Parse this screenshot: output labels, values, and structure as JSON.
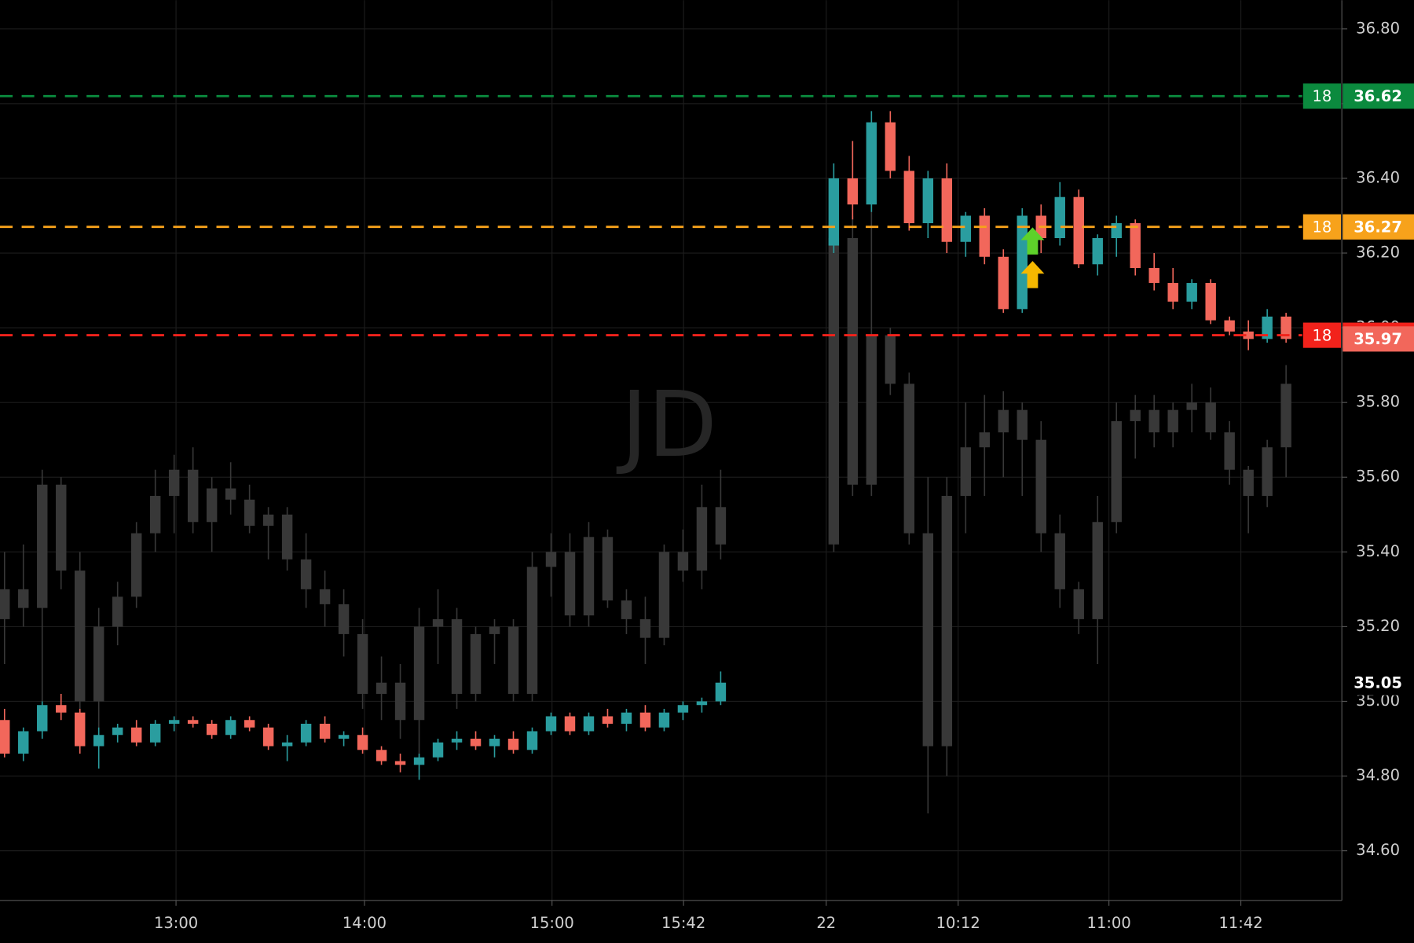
{
  "chart_data": {
    "type": "candlestick",
    "watermark": "JD",
    "x": [
      0,
      1,
      2,
      3,
      4,
      5,
      6,
      7,
      8,
      9,
      10,
      11,
      12,
      13,
      14,
      15,
      16,
      17,
      18,
      19,
      20,
      21,
      22,
      23,
      24,
      25,
      26,
      27,
      28,
      29,
      30,
      31,
      32,
      33,
      34,
      35,
      36,
      37,
      38,
      44,
      45,
      46,
      47,
      48,
      49,
      50,
      51,
      52,
      53,
      54,
      55,
      56,
      57,
      58,
      59,
      60,
      61,
      62,
      63,
      64,
      65,
      66,
      67,
      68
    ],
    "xlim": [
      -0.24,
      70.96
    ],
    "xticks": [
      {
        "value": 9.1,
        "label": "13:00"
      },
      {
        "value": 19.1,
        "label": "14:00"
      },
      {
        "value": 29.05,
        "label": "15:00"
      },
      {
        "value": 36.03,
        "label": "15:42"
      },
      {
        "value": 43.6,
        "label": "22"
      },
      {
        "value": 50.6,
        "label": "10:12"
      },
      {
        "value": 58.6,
        "label": "11:00"
      },
      {
        "value": 65.6,
        "label": "11:42"
      }
    ],
    "ylim": [
      34.467,
      36.877
    ],
    "yticks": [
      {
        "value": 34.6,
        "label": "34.60"
      },
      {
        "value": 34.8,
        "label": "34.80"
      },
      {
        "value": 35.0,
        "label": "35.00"
      },
      {
        "value": 35.2,
        "label": "35.20"
      },
      {
        "value": 35.4,
        "label": "35.40"
      },
      {
        "value": 35.6,
        "label": "35.60"
      },
      {
        "value": 35.8,
        "label": "35.80"
      },
      {
        "value": 36.0,
        "label": "36.00"
      },
      {
        "value": 36.2,
        "label": "36.20"
      },
      {
        "value": 36.4,
        "label": "36.40"
      },
      {
        "value": 36.6,
        "label": "36.60"
      },
      {
        "value": 36.8,
        "label": "36.80"
      }
    ],
    "grid": true,
    "series": [
      {
        "color": "#383838",
        "values": [
          [
            35.22,
            35.4,
            35.1,
            35.3
          ],
          [
            35.3,
            35.42,
            35.2,
            35.25
          ],
          [
            35.25,
            35.62,
            35.0,
            35.58
          ],
          [
            35.58,
            35.6,
            35.3,
            35.35
          ],
          [
            35.35,
            35.4,
            34.88,
            35.0
          ],
          [
            35.0,
            35.25,
            34.9,
            35.2
          ],
          [
            35.2,
            35.32,
            35.15,
            35.28
          ],
          [
            35.28,
            35.48,
            35.25,
            35.45
          ],
          [
            35.45,
            35.62,
            35.4,
            35.55
          ],
          [
            35.55,
            35.66,
            35.45,
            35.62
          ],
          [
            35.62,
            35.68,
            35.45,
            35.48
          ],
          [
            35.48,
            35.6,
            35.4,
            35.57
          ],
          [
            35.57,
            35.64,
            35.5,
            35.54
          ],
          [
            35.54,
            35.58,
            35.45,
            35.47
          ],
          [
            35.47,
            35.52,
            35.38,
            35.5
          ],
          [
            35.5,
            35.52,
            35.35,
            35.38
          ],
          [
            35.38,
            35.45,
            35.25,
            35.3
          ],
          [
            35.3,
            35.35,
            35.2,
            35.26
          ],
          [
            35.26,
            35.3,
            35.12,
            35.18
          ],
          [
            35.18,
            35.22,
            34.98,
            35.02
          ],
          [
            35.02,
            35.12,
            34.95,
            35.05
          ],
          [
            35.05,
            35.1,
            34.9,
            34.95
          ],
          [
            34.95,
            35.25,
            34.85,
            35.2
          ],
          [
            35.2,
            35.3,
            35.1,
            35.22
          ],
          [
            35.22,
            35.25,
            34.98,
            35.02
          ],
          [
            35.02,
            35.2,
            35.0,
            35.18
          ],
          [
            35.18,
            35.22,
            35.1,
            35.2
          ],
          [
            35.2,
            35.22,
            35.0,
            35.02
          ],
          [
            35.02,
            35.4,
            35.0,
            35.36
          ],
          [
            35.36,
            35.45,
            35.28,
            35.4
          ],
          [
            35.4,
            35.45,
            35.2,
            35.23
          ],
          [
            35.23,
            35.48,
            35.2,
            35.44
          ],
          [
            35.44,
            35.46,
            35.25,
            35.27
          ],
          [
            35.27,
            35.3,
            35.18,
            35.22
          ],
          [
            35.22,
            35.28,
            35.1,
            35.17
          ],
          [
            35.17,
            35.42,
            35.15,
            35.4
          ],
          [
            35.4,
            35.46,
            35.32,
            35.35
          ],
          [
            35.35,
            35.58,
            35.3,
            35.52
          ],
          [
            35.52,
            35.62,
            35.38,
            35.42
          ],
          [
            35.42,
            36.27,
            35.4,
            36.24
          ],
          [
            36.24,
            36.3,
            35.55,
            35.58
          ],
          [
            35.58,
            36.4,
            35.55,
            35.98
          ],
          [
            35.98,
            36.0,
            35.82,
            35.85
          ],
          [
            35.85,
            35.88,
            35.42,
            35.45
          ],
          [
            35.45,
            35.6,
            34.7,
            34.88
          ],
          [
            34.88,
            35.6,
            34.8,
            35.55
          ],
          [
            35.55,
            35.8,
            35.45,
            35.68
          ],
          [
            35.68,
            35.82,
            35.55,
            35.72
          ],
          [
            35.72,
            35.83,
            35.6,
            35.78
          ],
          [
            35.78,
            35.8,
            35.55,
            35.7
          ],
          [
            35.7,
            35.75,
            35.4,
            35.45
          ],
          [
            35.45,
            35.5,
            35.25,
            35.3
          ],
          [
            35.3,
            35.32,
            35.18,
            35.22
          ],
          [
            35.22,
            35.55,
            35.1,
            35.48
          ],
          [
            35.48,
            35.8,
            35.45,
            35.75
          ],
          [
            35.75,
            35.82,
            35.65,
            35.78
          ],
          [
            35.78,
            35.82,
            35.68,
            35.72
          ],
          [
            35.72,
            35.8,
            35.68,
            35.78
          ],
          [
            35.78,
            35.85,
            35.72,
            35.8
          ],
          [
            35.8,
            35.84,
            35.7,
            35.72
          ],
          [
            35.72,
            35.75,
            35.58,
            35.62
          ],
          [
            35.62,
            35.63,
            35.45,
            35.55
          ],
          [
            35.55,
            35.7,
            35.52,
            35.68
          ],
          [
            35.68,
            35.9,
            35.6,
            35.85
          ]
        ]
      },
      {
        "color_up": "#2a9d9f",
        "color_down": "#f2675b",
        "values": [
          [
            34.95,
            34.98,
            34.85,
            34.86
          ],
          [
            34.86,
            34.93,
            34.84,
            34.92
          ],
          [
            34.92,
            35.0,
            34.9,
            34.99
          ],
          [
            34.99,
            35.02,
            34.95,
            34.97
          ],
          [
            34.97,
            34.98,
            34.86,
            34.88
          ],
          [
            34.88,
            34.93,
            34.82,
            34.91
          ],
          [
            34.91,
            34.94,
            34.89,
            34.93
          ],
          [
            34.93,
            34.95,
            34.88,
            34.89
          ],
          [
            34.89,
            34.95,
            34.88,
            34.94
          ],
          [
            34.94,
            34.96,
            34.92,
            34.95
          ],
          [
            34.95,
            34.96,
            34.93,
            34.94
          ],
          [
            34.94,
            34.95,
            34.9,
            34.91
          ],
          [
            34.91,
            34.96,
            34.9,
            34.95
          ],
          [
            34.95,
            34.96,
            34.92,
            34.93
          ],
          [
            34.93,
            34.94,
            34.87,
            34.88
          ],
          [
            34.88,
            34.91,
            34.84,
            34.89
          ],
          [
            34.89,
            34.95,
            34.88,
            34.94
          ],
          [
            34.94,
            34.96,
            34.89,
            34.9
          ],
          [
            34.9,
            34.92,
            34.88,
            34.91
          ],
          [
            34.91,
            34.93,
            34.86,
            34.87
          ],
          [
            34.87,
            34.88,
            34.83,
            34.84
          ],
          [
            34.84,
            34.86,
            34.81,
            34.83
          ],
          [
            34.83,
            34.86,
            34.79,
            34.85
          ],
          [
            34.85,
            34.9,
            34.84,
            34.89
          ],
          [
            34.89,
            34.92,
            34.87,
            34.9
          ],
          [
            34.9,
            34.92,
            34.87,
            34.88
          ],
          [
            34.88,
            34.91,
            34.85,
            34.9
          ],
          [
            34.9,
            34.92,
            34.86,
            34.87
          ],
          [
            34.87,
            34.93,
            34.86,
            34.92
          ],
          [
            34.92,
            34.97,
            34.91,
            34.96
          ],
          [
            34.96,
            34.97,
            34.91,
            34.92
          ],
          [
            34.92,
            34.97,
            34.91,
            34.96
          ],
          [
            34.96,
            34.98,
            34.93,
            34.94
          ],
          [
            34.94,
            34.98,
            34.92,
            34.97
          ],
          [
            34.97,
            34.99,
            34.92,
            34.93
          ],
          [
            34.93,
            34.98,
            34.92,
            34.97
          ],
          [
            34.97,
            35.0,
            34.95,
            34.99
          ],
          [
            34.99,
            35.01,
            34.97,
            35.0
          ],
          [
            35.0,
            35.08,
            34.99,
            35.05
          ],
          [
            36.22,
            36.44,
            36.2,
            36.4
          ],
          [
            36.4,
            36.5,
            36.29,
            36.33
          ],
          [
            36.33,
            36.58,
            36.31,
            36.55
          ],
          [
            36.55,
            36.58,
            36.4,
            36.42
          ],
          [
            36.42,
            36.46,
            36.26,
            36.28
          ],
          [
            36.28,
            36.42,
            36.24,
            36.4
          ],
          [
            36.4,
            36.44,
            36.2,
            36.23
          ],
          [
            36.23,
            36.31,
            36.19,
            36.3
          ],
          [
            36.3,
            36.32,
            36.17,
            36.19
          ],
          [
            36.19,
            36.21,
            36.04,
            36.05
          ],
          [
            36.05,
            36.32,
            36.04,
            36.3
          ],
          [
            36.3,
            36.33,
            36.2,
            36.24
          ],
          [
            36.24,
            36.39,
            36.22,
            36.35
          ],
          [
            36.35,
            36.37,
            36.16,
            36.17
          ],
          [
            36.17,
            36.25,
            36.14,
            36.24
          ],
          [
            36.24,
            36.3,
            36.19,
            36.28
          ],
          [
            36.28,
            36.29,
            36.14,
            36.16
          ],
          [
            36.16,
            36.2,
            36.1,
            36.12
          ],
          [
            36.12,
            36.16,
            36.05,
            36.07
          ],
          [
            36.07,
            36.13,
            36.05,
            36.12
          ],
          [
            36.12,
            36.13,
            36.01,
            36.02
          ],
          [
            36.02,
            36.03,
            35.98,
            35.99
          ],
          [
            35.99,
            36.02,
            35.94,
            35.97
          ],
          [
            35.97,
            36.05,
            35.96,
            36.03
          ],
          [
            36.03,
            36.04,
            35.96,
            35.97
          ]
        ]
      }
    ],
    "levels": [
      {
        "value": 36.62,
        "count": 18,
        "color": "#0b8a3e"
      },
      {
        "value": 36.27,
        "count": 18,
        "color": "#f7a21b"
      },
      {
        "value": 35.98,
        "count": 18,
        "color": "#f2221b"
      }
    ],
    "price_tags": [
      {
        "value": 35.97,
        "color": "#f2675b",
        "text_color": "#ffffff"
      },
      {
        "value": 35.05,
        "color": "#000000",
        "text_color": "#ffffff"
      }
    ],
    "markers": [
      {
        "x": 54.55,
        "value": 36.23,
        "color": "#5ed22a"
      },
      {
        "x": 54.55,
        "value": 36.14,
        "color": "#f5b800"
      }
    ]
  }
}
